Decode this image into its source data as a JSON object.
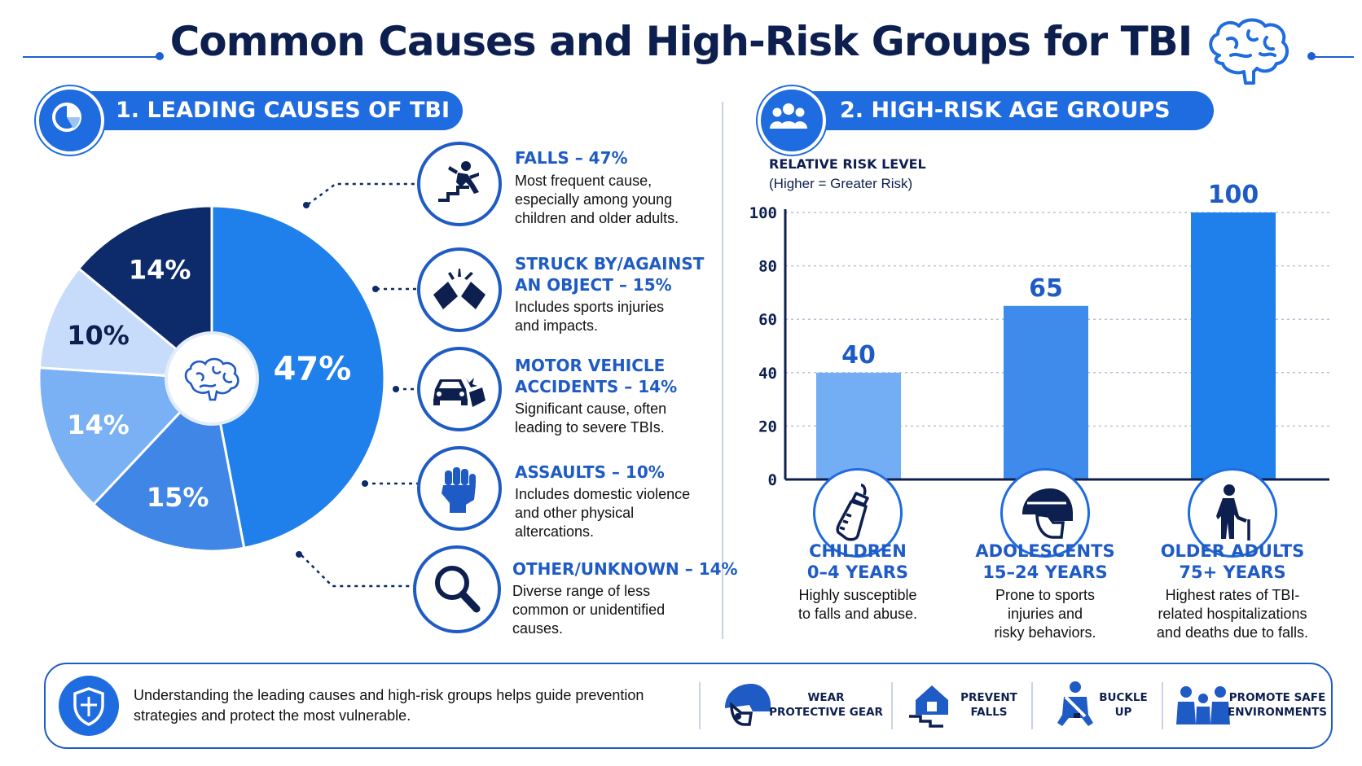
{
  "title": "Common Causes and High-Risk Groups for TBI",
  "colors": {
    "primary": "#1f6be0",
    "navy": "#0d1f4f",
    "accent": "#1f5bc4"
  },
  "section1": {
    "heading": "1. LEADING CAUSES OF TBI",
    "icon": "pie-chart-icon"
  },
  "section2": {
    "heading": "2. HIGH-RISK AGE GROUPS",
    "icon": "people-group-icon"
  },
  "causes": [
    {
      "title": "FALLS – 47%",
      "desc": [
        "Most frequent cause,",
        "especially among young",
        "children and older adults."
      ],
      "icon": "falling-person-icon"
    },
    {
      "title": "STRUCK BY/AGAINST",
      "title2": "AN OBJECT – 15%",
      "desc": [
        "Includes sports injuries",
        "and impacts."
      ],
      "icon": "impact-icon"
    },
    {
      "title": "MOTOR VEHICLE",
      "title2": "ACCIDENTS – 14%",
      "desc": [
        "Significant cause, often",
        "leading to severe TBIs."
      ],
      "icon": "car-crash-icon"
    },
    {
      "title": "ASSAULTS – 10%",
      "desc": [
        "Includes domestic violence",
        "and other physical",
        "altercations."
      ],
      "icon": "fist-icon"
    },
    {
      "title": "OTHER/UNKNOWN – 14%",
      "desc": [
        "Diverse range of less",
        "common or unidentified",
        "causes."
      ],
      "icon": "magnifier-icon"
    }
  ],
  "groups": [
    {
      "name": "CHILDREN",
      "ages": "0–4 YEARS",
      "desc": [
        "Highly susceptible",
        "to falls and abuse."
      ],
      "icon": "baby-bottle-icon"
    },
    {
      "name": "ADOLESCENTS",
      "ages": "15–24 YEARS",
      "desc": [
        "Prone to sports",
        "injuries and",
        "risky behaviors."
      ],
      "icon": "helmet-icon"
    },
    {
      "name": "OLDER ADULTS",
      "ages": "75+ YEARS",
      "desc": [
        "Highest rates of TBI-",
        "related hospitalizations",
        "and deaths due to falls."
      ],
      "icon": "elderly-cane-icon"
    }
  ],
  "footer": {
    "text": [
      "Understanding the leading causes and high-risk groups helps guide prevention",
      "strategies and protect the most vulnerable."
    ],
    "icon": "shield-icon",
    "tips": [
      {
        "line1": "WEAR",
        "line2": "PROTECTIVE GEAR",
        "icon": "helmet-icon"
      },
      {
        "line1": "PREVENT",
        "line2": "FALLS",
        "icon": "house-stairs-icon"
      },
      {
        "line1": "BUCKLE",
        "line2": "UP",
        "icon": "seatbelt-icon"
      },
      {
        "line1": "PROMOTE SAFE",
        "line2": "ENVIRONMENTS",
        "icon": "family-icon"
      }
    ]
  },
  "chart_data": [
    {
      "type": "pie",
      "center_icon": "brain-icon",
      "slices": [
        {
          "label": "Falls",
          "value": 47,
          "display": "47%",
          "color": "#1f80eb"
        },
        {
          "label": "Struck by/against an object",
          "value": 15,
          "display": "15%",
          "color": "#3f86e6"
        },
        {
          "label": "Motor vehicle accidents",
          "value": 14,
          "display": "14%",
          "color": "#7ab0f4"
        },
        {
          "label": "Assaults",
          "value": 10,
          "display": "10%",
          "color": "#c6dcfa"
        },
        {
          "label": "Other/unknown",
          "value": 14,
          "display": "14%",
          "color": "#0d2a6b"
        }
      ]
    },
    {
      "type": "bar",
      "title": "RELATIVE RISK LEVEL",
      "subtitle": "(Higher = Greater Risk)",
      "categories": [
        "CHILDREN 0–4 YEARS",
        "ADOLESCENTS 15–24 YEARS",
        "OLDER ADULTS 75+ YEARS"
      ],
      "values": [
        40,
        65,
        100
      ],
      "value_labels": [
        "40",
        "65",
        "100"
      ],
      "bar_colors": [
        "#73adf3",
        "#3e8bec",
        "#1f80eb"
      ],
      "ylim": [
        0,
        100
      ],
      "yticks": [
        0,
        20,
        40,
        60,
        80,
        100
      ],
      "grid": true
    }
  ]
}
